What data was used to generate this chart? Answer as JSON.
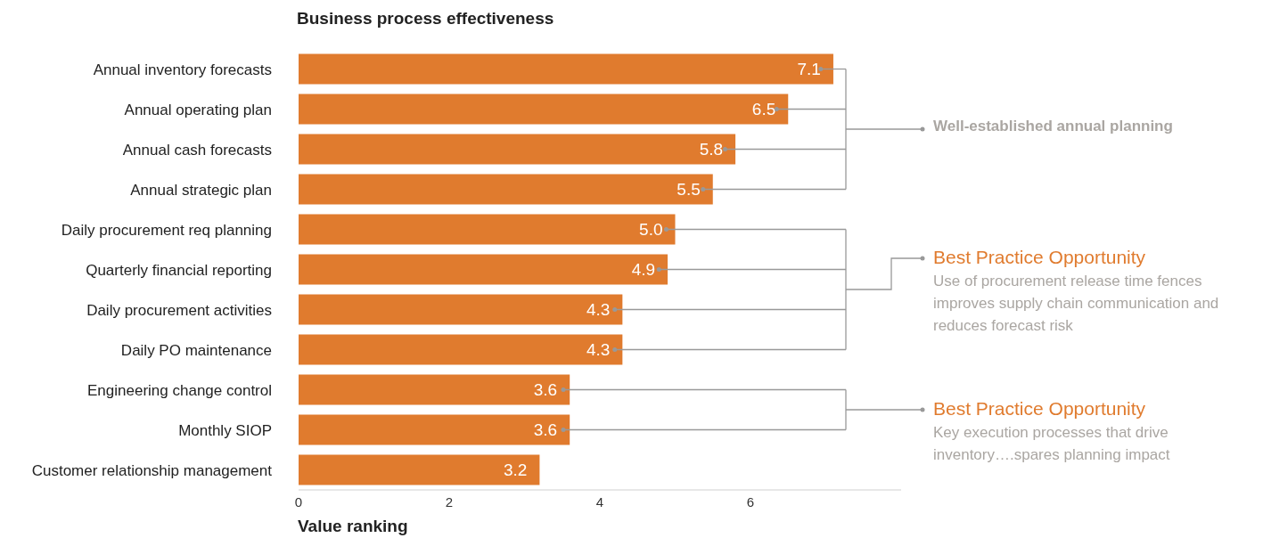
{
  "chart_data": {
    "type": "bar",
    "orientation": "horizontal",
    "title": "Business process effectiveness",
    "xlabel": "Value ranking",
    "categories": [
      "Annual inventory forecasts",
      "Annual operating plan",
      "Annual cash forecasts",
      "Annual strategic plan",
      "Daily procurement req planning",
      "Quarterly financial reporting",
      "Daily procurement activities",
      "Daily PO maintenance",
      "Engineering change control",
      "Monthly SIOP",
      "Customer relationship management"
    ],
    "values": [
      7.1,
      6.5,
      5.8,
      5.5,
      5.0,
      4.9,
      4.3,
      4.3,
      3.6,
      3.6,
      3.2
    ],
    "value_labels": [
      "7.1",
      "6.5",
      "5.8",
      "5.5",
      "5.0",
      "4.9",
      "4.3",
      "4.3",
      "3.6",
      "3.6",
      "3.2"
    ],
    "color": "#e07b2e",
    "xlim": [
      0,
      8
    ],
    "xticks": [
      0,
      2,
      4,
      6
    ],
    "grid": false,
    "annotations": [
      "Well-established annual planning",
      "Best Practice Opportunity",
      "Use of procurement release time fences improves supply chain communication and reduces forecast risk",
      "Best Practice Opportunity",
      "Key execution processes that drive inventory….spares planning impact"
    ]
  }
}
